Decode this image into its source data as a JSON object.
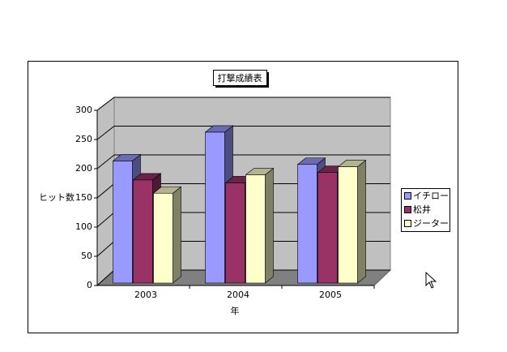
{
  "chart_data": {
    "type": "bar3d",
    "title": "打撃成績表",
    "x_label": "年",
    "y_label": "ヒット数",
    "categories": [
      "2003",
      "2004",
      "2005"
    ],
    "series": [
      {
        "name": "イチロー",
        "color": "#9999ff",
        "values": [
          212,
          262,
          206
        ]
      },
      {
        "name": "松井",
        "color": "#993366",
        "values": [
          179,
          174,
          192
        ]
      },
      {
        "name": "ジーター",
        "color": "#ffffcc",
        "values": [
          156,
          188,
          202
        ]
      }
    ],
    "ylim": [
      0,
      300
    ],
    "yticks": [
      0,
      50,
      100,
      150,
      200,
      250,
      300
    ],
    "grid": true,
    "legend": "right"
  }
}
